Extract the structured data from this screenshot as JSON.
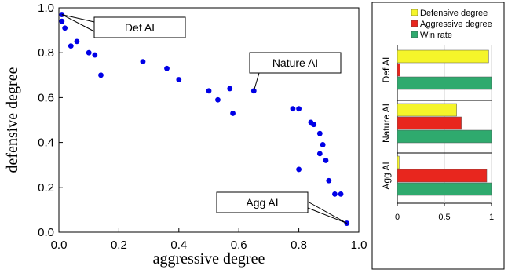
{
  "chart_data": [
    {
      "type": "scatter",
      "xlabel": "aggressive degree",
      "ylabel": "defensive degree",
      "xlim": [
        0.0,
        1.0
      ],
      "ylim": [
        0.0,
        1.0
      ],
      "x_ticks": [
        "0.0",
        "0.2",
        "0.4",
        "0.6",
        "0.8",
        "1.0"
      ],
      "y_ticks": [
        "0.0",
        "0.2",
        "0.4",
        "0.6",
        "0.8",
        "1.0"
      ],
      "grid": false,
      "point_color": "#0000e6",
      "points": [
        {
          "x": 0.01,
          "y": 0.97
        },
        {
          "x": 0.01,
          "y": 0.94
        },
        {
          "x": 0.02,
          "y": 0.91
        },
        {
          "x": 0.04,
          "y": 0.83
        },
        {
          "x": 0.06,
          "y": 0.85
        },
        {
          "x": 0.1,
          "y": 0.8
        },
        {
          "x": 0.12,
          "y": 0.79
        },
        {
          "x": 0.14,
          "y": 0.7
        },
        {
          "x": 0.28,
          "y": 0.76
        },
        {
          "x": 0.36,
          "y": 0.73
        },
        {
          "x": 0.4,
          "y": 0.68
        },
        {
          "x": 0.5,
          "y": 0.63
        },
        {
          "x": 0.53,
          "y": 0.59
        },
        {
          "x": 0.57,
          "y": 0.64
        },
        {
          "x": 0.58,
          "y": 0.53
        },
        {
          "x": 0.65,
          "y": 0.63
        },
        {
          "x": 0.78,
          "y": 0.55
        },
        {
          "x": 0.8,
          "y": 0.55
        },
        {
          "x": 0.84,
          "y": 0.49
        },
        {
          "x": 0.85,
          "y": 0.48
        },
        {
          "x": 0.87,
          "y": 0.44
        },
        {
          "x": 0.88,
          "y": 0.39
        },
        {
          "x": 0.87,
          "y": 0.35
        },
        {
          "x": 0.8,
          "y": 0.28
        },
        {
          "x": 0.89,
          "y": 0.32
        },
        {
          "x": 0.9,
          "y": 0.23
        },
        {
          "x": 0.92,
          "y": 0.17
        },
        {
          "x": 0.94,
          "y": 0.17
        },
        {
          "x": 0.96,
          "y": 0.04
        }
      ],
      "annotations": [
        {
          "text": "Def AI",
          "x": 0.01,
          "y": 0.97
        },
        {
          "text": "Nature AI",
          "x": 0.65,
          "y": 0.63
        },
        {
          "text": "Agg AI",
          "x": 0.96,
          "y": 0.04
        }
      ]
    },
    {
      "type": "bar",
      "orientation": "horizontal",
      "categories": [
        "Def AI",
        "Nature AI",
        "Agg AI"
      ],
      "xlim": [
        0,
        1
      ],
      "x_ticks": [
        "0",
        "0.5",
        "1"
      ],
      "legend_position": "top",
      "series": [
        {
          "name": "Defensive degree",
          "color": "#f5f52a",
          "values": [
            0.97,
            0.63,
            0.02
          ]
        },
        {
          "name": "Aggressive degree",
          "color": "#e8261e",
          "values": [
            0.03,
            0.68,
            0.95
          ]
        },
        {
          "name": "Win rate",
          "color": "#2faa6e",
          "values": [
            1.0,
            1.0,
            1.0
          ]
        }
      ]
    }
  ]
}
